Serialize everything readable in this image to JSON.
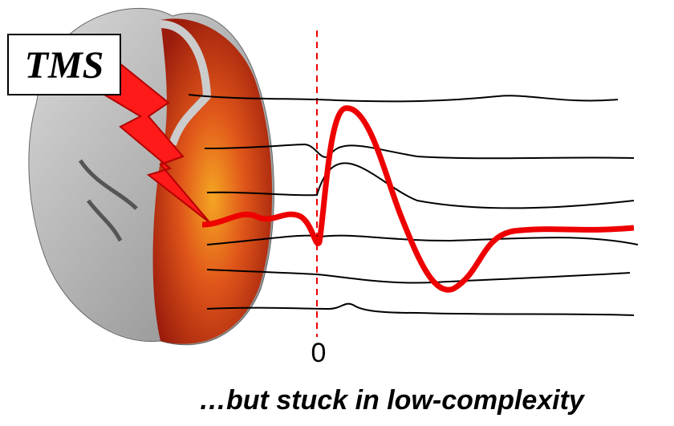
{
  "label_box": {
    "text": "TMS"
  },
  "time_marker": {
    "label": "0"
  },
  "caption": "…but stuck in low-complexity"
}
